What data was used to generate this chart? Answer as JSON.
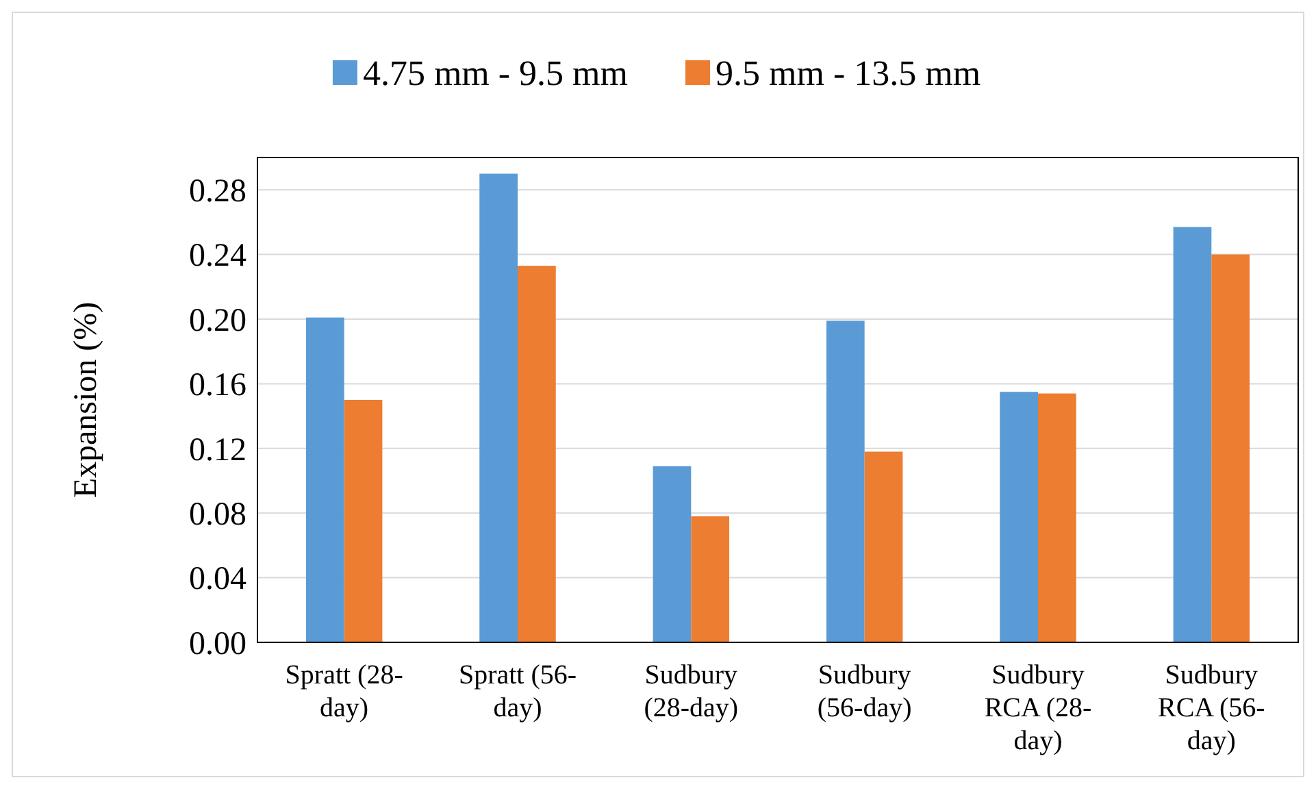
{
  "chart_data": {
    "type": "bar",
    "ylabel": "Expansion (%)",
    "categories": [
      "Spratt (28-day)",
      "Spratt (56-day)",
      "Sudbury (28-day)",
      "Sudbury (56-day)",
      "Sudbury RCA (28-day)",
      "Sudbury RCA (56-day)"
    ],
    "series": [
      {
        "name": "4.75 mm - 9.5 mm",
        "color": "#5b9bd5",
        "values": [
          0.201,
          0.29,
          0.109,
          0.199,
          0.155,
          0.257
        ]
      },
      {
        "name": "9.5 mm - 13.5 mm",
        "color": "#ed7d31",
        "values": [
          0.15,
          0.233,
          0.078,
          0.118,
          0.154,
          0.24
        ]
      }
    ],
    "ylim": [
      0,
      0.3
    ],
    "yticks": [
      {
        "value": 0,
        "label": "0.00"
      },
      {
        "value": 0.04,
        "label": "0.04"
      },
      {
        "value": 0.08,
        "label": "0.08"
      },
      {
        "value": 0.12,
        "label": "0.12"
      },
      {
        "value": 0.16,
        "label": "0.16"
      },
      {
        "value": 0.2,
        "label": "0.20"
      },
      {
        "value": 0.24,
        "label": "0.24"
      },
      {
        "value": 0.28,
        "label": "0.28"
      }
    ],
    "grid": "y",
    "legend": "top"
  }
}
